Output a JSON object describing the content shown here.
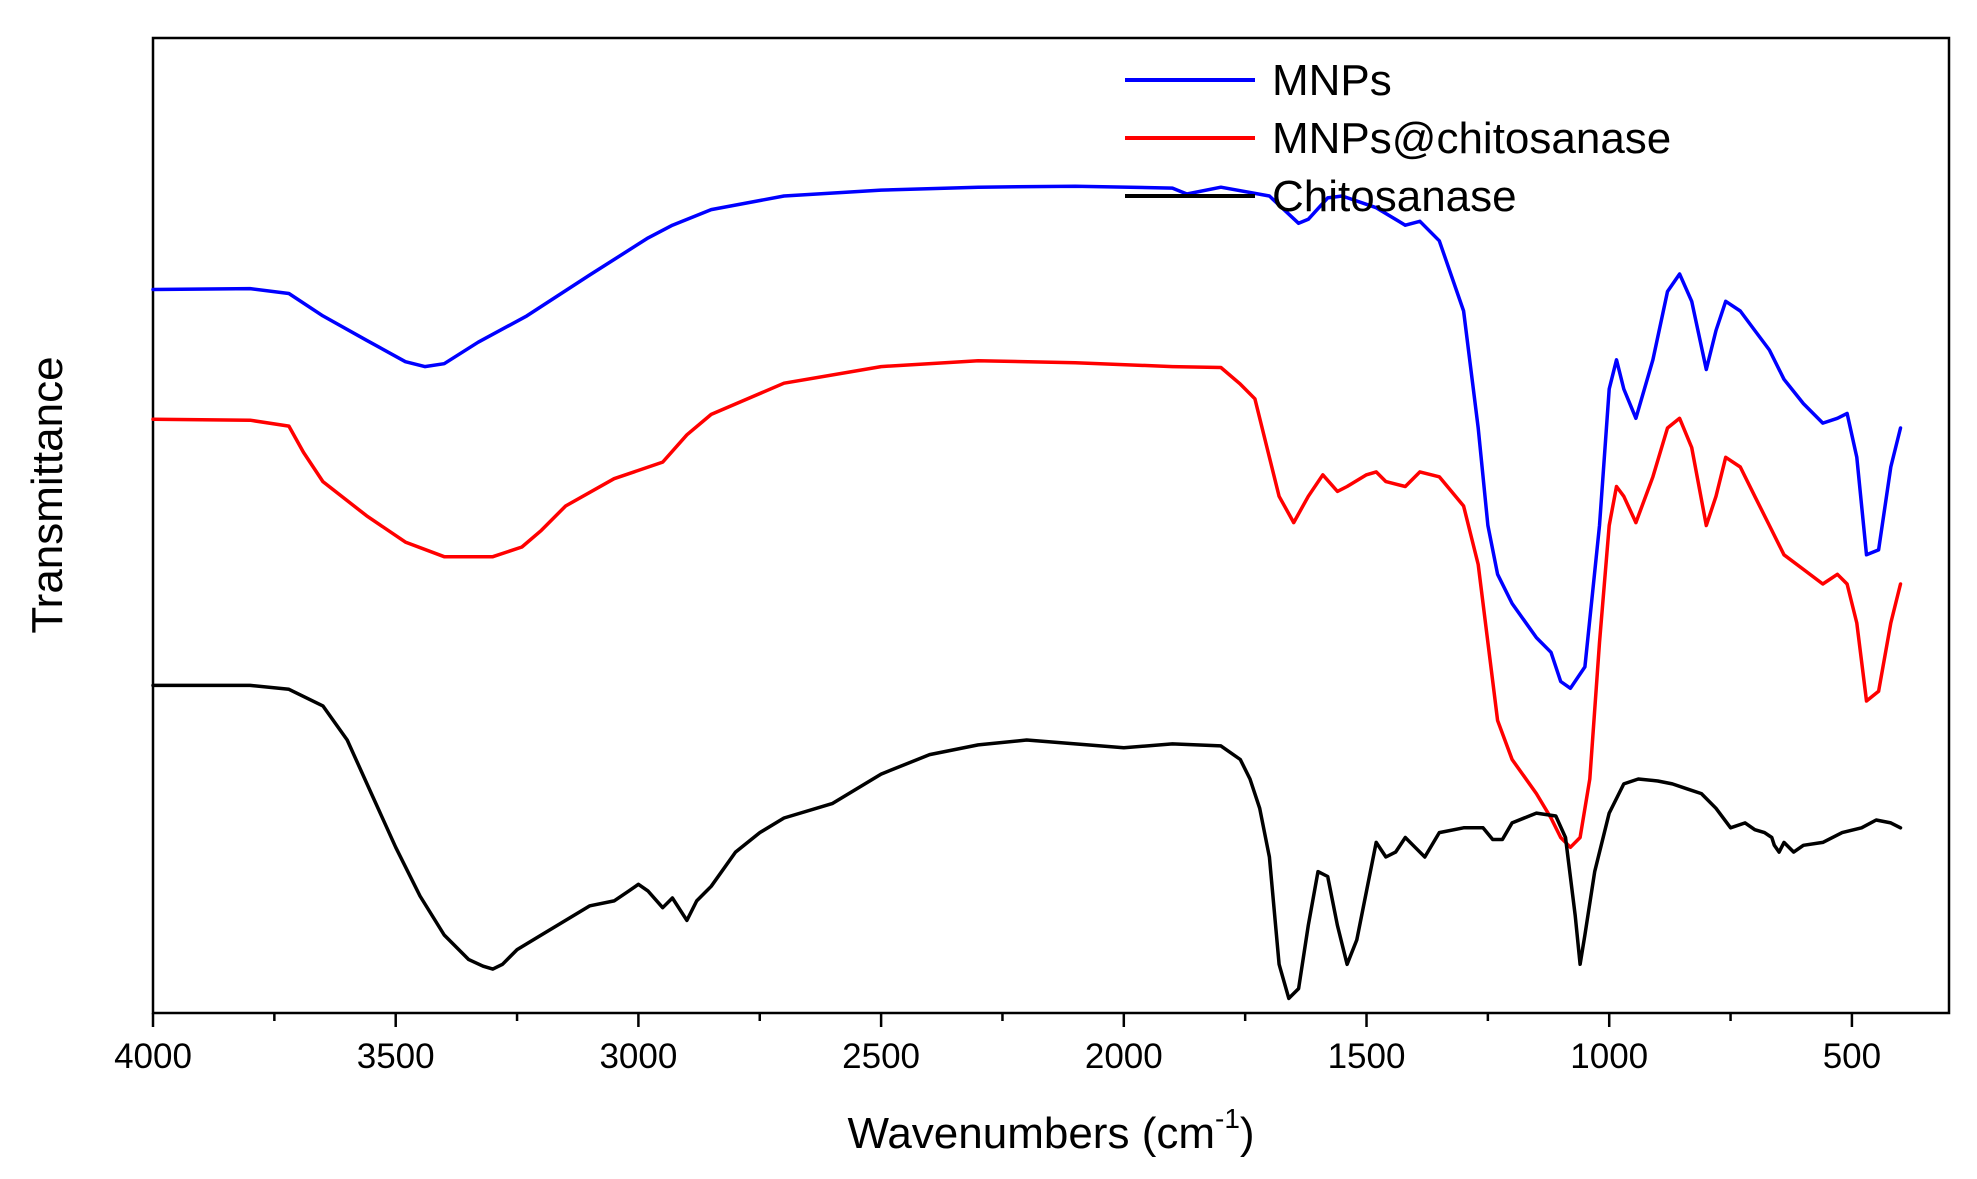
{
  "chart_data": {
    "type": "line",
    "title": "",
    "xlabel": "Wavenumbers (cm",
    "xlabel_sup": "-1",
    "xlabel_close": ")",
    "ylabel": "Transmittance",
    "xlim": [
      4000,
      300
    ],
    "x_reversed": true,
    "ylim": [
      0,
      100
    ],
    "y_ticks_labeled": false,
    "xticks": [
      4000,
      3500,
      3000,
      2500,
      2000,
      1500,
      1000,
      500
    ],
    "xtick_labels": [
      "4000",
      "3500",
      "3000",
      "2500",
      "2000",
      "1500",
      "1000",
      "500"
    ],
    "grid": false,
    "legend_position": "top-right",
    "series": [
      {
        "name": "MNPs",
        "color": "#0000ff",
        "x": [
          4000,
          3800,
          3720,
          3650,
          3560,
          3480,
          3440,
          3400,
          3330,
          3230,
          3100,
          2980,
          2930,
          2850,
          2700,
          2500,
          2300,
          2100,
          1900,
          1870,
          1800,
          1700,
          1640,
          1620,
          1580,
          1550,
          1480,
          1420,
          1390,
          1350,
          1300,
          1270,
          1250,
          1230,
          1200,
          1150,
          1120,
          1100,
          1080,
          1050,
          1020,
          1000,
          985,
          970,
          945,
          910,
          880,
          855,
          830,
          800,
          780,
          760,
          730,
          700,
          670,
          640,
          600,
          560,
          530,
          510,
          490,
          470,
          445,
          420,
          400
        ],
        "y": [
          74.2,
          74.3,
          73.8,
          71.5,
          69.0,
          66.8,
          66.3,
          66.6,
          68.8,
          71.5,
          75.7,
          79.5,
          80.8,
          82.4,
          83.8,
          84.4,
          84.7,
          84.8,
          84.6,
          84.0,
          84.7,
          83.8,
          81.0,
          81.4,
          83.6,
          83.8,
          82.6,
          80.8,
          81.2,
          79.2,
          72.0,
          60.0,
          50.0,
          45.0,
          42.0,
          38.5,
          37.0,
          34.0,
          33.3,
          35.5,
          50.0,
          64.0,
          67.0,
          64.0,
          61.0,
          67.0,
          74.0,
          75.8,
          73.0,
          66.0,
          70.0,
          73.0,
          72.0,
          70.0,
          68.0,
          65.0,
          62.5,
          60.5,
          61.0,
          61.5,
          57.0,
          47.0,
          47.5,
          56.0,
          60.0
        ]
      },
      {
        "name": "MNPs@chitosanase",
        "color": "#ff0000",
        "x": [
          4000,
          3800,
          3720,
          3690,
          3650,
          3560,
          3480,
          3400,
          3300,
          3240,
          3200,
          3150,
          3050,
          2950,
          2900,
          2850,
          2700,
          2500,
          2300,
          2100,
          1900,
          1800,
          1760,
          1730,
          1700,
          1680,
          1650,
          1620,
          1590,
          1560,
          1540,
          1500,
          1480,
          1460,
          1420,
          1390,
          1350,
          1300,
          1270,
          1250,
          1230,
          1200,
          1150,
          1120,
          1100,
          1080,
          1060,
          1040,
          1020,
          1000,
          985,
          970,
          945,
          910,
          880,
          855,
          830,
          800,
          780,
          760,
          730,
          700,
          670,
          640,
          600,
          560,
          530,
          510,
          490,
          470,
          445,
          420,
          400
        ],
        "y": [
          60.9,
          60.8,
          60.2,
          57.5,
          54.5,
          51.0,
          48.3,
          46.8,
          46.8,
          47.8,
          49.5,
          52.0,
          54.8,
          56.5,
          59.3,
          61.4,
          64.6,
          66.3,
          66.9,
          66.7,
          66.3,
          66.2,
          64.5,
          63.0,
          57.0,
          53.0,
          50.3,
          53.0,
          55.2,
          53.5,
          54.0,
          55.2,
          55.5,
          54.5,
          54.0,
          55.5,
          55.0,
          52.0,
          46.0,
          38.0,
          30.0,
          26.0,
          22.5,
          20.0,
          18.0,
          17.0,
          18.0,
          24.0,
          38.0,
          50.0,
          54.0,
          53.0,
          50.3,
          55.0,
          60.0,
          61.0,
          58.0,
          50.0,
          53.0,
          57.0,
          56.0,
          53.0,
          50.0,
          47.0,
          45.5,
          44.0,
          45.0,
          44.0,
          40.0,
          32.0,
          33.0,
          40.0,
          44.0
        ]
      },
      {
        "name": "Chitosanase",
        "color": "#000000",
        "x": [
          4000,
          3800,
          3720,
          3650,
          3600,
          3550,
          3500,
          3450,
          3400,
          3350,
          3320,
          3300,
          3280,
          3250,
          3200,
          3150,
          3100,
          3050,
          3020,
          3000,
          2980,
          2950,
          2930,
          2900,
          2880,
          2860,
          2850,
          2800,
          2750,
          2700,
          2600,
          2500,
          2400,
          2300,
          2200,
          2100,
          2000,
          1900,
          1800,
          1760,
          1740,
          1720,
          1700,
          1680,
          1660,
          1640,
          1620,
          1600,
          1580,
          1560,
          1540,
          1520,
          1500,
          1480,
          1460,
          1440,
          1420,
          1400,
          1380,
          1350,
          1300,
          1260,
          1240,
          1220,
          1200,
          1150,
          1110,
          1090,
          1070,
          1060,
          1050,
          1030,
          1000,
          970,
          940,
          900,
          870,
          840,
          810,
          780,
          750,
          720,
          700,
          680,
          665,
          660,
          650,
          640,
          620,
          600,
          560,
          520,
          480,
          450,
          420,
          400
        ],
        "y": [
          33.6,
          33.6,
          33.2,
          31.5,
          28.0,
          22.5,
          17.0,
          12.0,
          8.0,
          5.5,
          4.8,
          4.5,
          5.0,
          6.5,
          8.0,
          9.5,
          11.0,
          11.5,
          12.5,
          13.2,
          12.5,
          10.8,
          11.8,
          9.5,
          11.5,
          12.5,
          13.0,
          16.5,
          18.5,
          20.0,
          21.5,
          24.5,
          26.5,
          27.5,
          28.0,
          27.6,
          27.2,
          27.6,
          27.4,
          26.0,
          24.0,
          21.0,
          16.0,
          5.0,
          1.5,
          2.5,
          9.0,
          14.5,
          14.0,
          9.0,
          5.0,
          7.5,
          12.5,
          17.5,
          16.0,
          16.5,
          18.0,
          17.0,
          16.0,
          18.5,
          19.0,
          19.0,
          17.8,
          17.8,
          19.5,
          20.5,
          20.2,
          18.0,
          10.0,
          5.0,
          8.0,
          14.5,
          20.5,
          23.5,
          24.0,
          23.8,
          23.5,
          23.0,
          22.5,
          21.0,
          19.0,
          19.5,
          18.8,
          18.5,
          18.0,
          17.2,
          16.5,
          17.5,
          16.5,
          17.2,
          17.5,
          18.5,
          19.0,
          19.8,
          19.5,
          19.0
        ]
      }
    ]
  }
}
